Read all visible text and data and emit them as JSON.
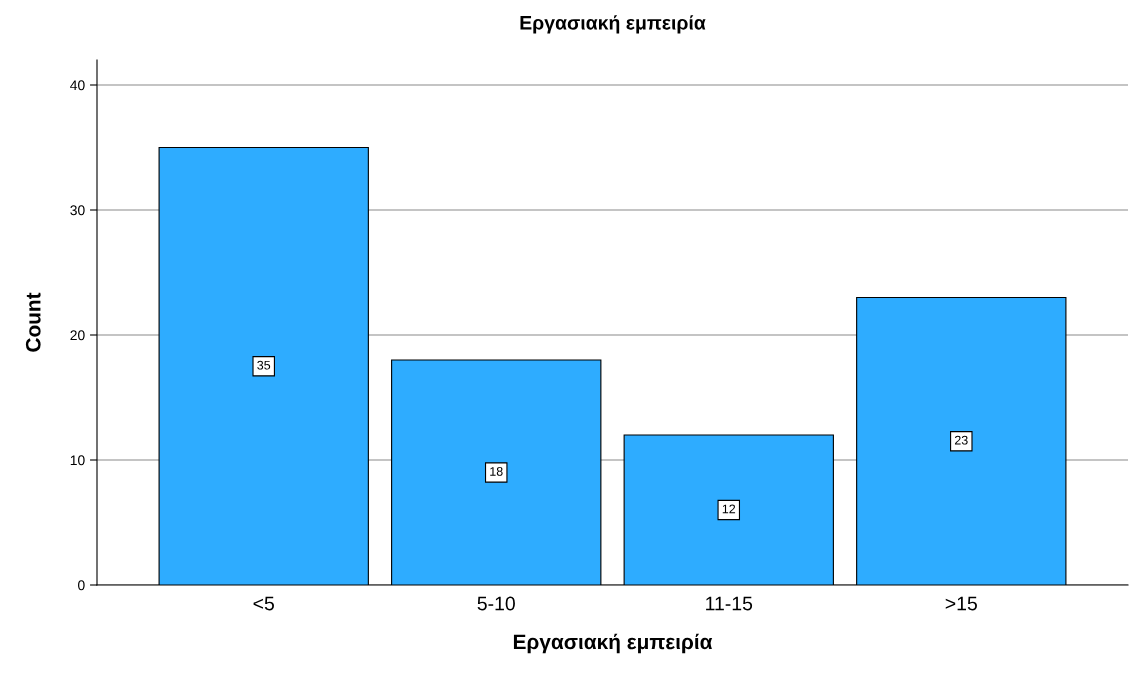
{
  "chart_data": {
    "type": "bar",
    "title": "Εργασιακή εμπειρία",
    "xlabel": "Εργασιακή εμπειρία",
    "ylabel": "Count",
    "categories": [
      "<5",
      "5-10",
      "11-15",
      ">15"
    ],
    "values": [
      35,
      18,
      12,
      23
    ],
    "color": "#2eacff",
    "ylim": [
      0,
      42
    ],
    "yticks": [
      0,
      10,
      20,
      30,
      40
    ],
    "grid": "y",
    "data_labels": true
  }
}
